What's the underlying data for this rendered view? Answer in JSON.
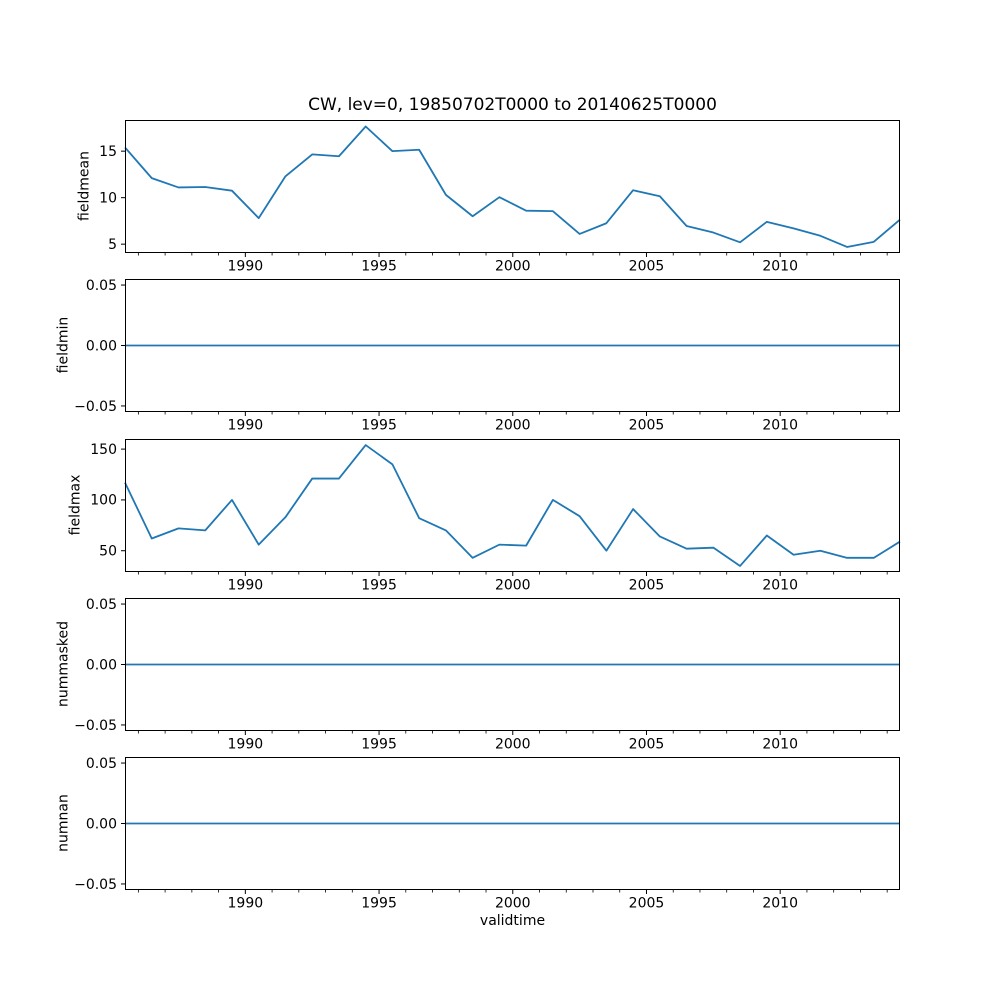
{
  "figure": {
    "background": "#ffffff",
    "frame_color": "#000000",
    "text_color": "#000000"
  },
  "chart_data": {
    "type": "line",
    "title": "CW, lev=0, 19850702T0000 to 20140625T0000",
    "xlabel": "validtime",
    "legend": "none",
    "grid": false,
    "line_color": "#1f77b4",
    "xlim": [
      1985.5,
      2014.48
    ],
    "x_major_ticks": [
      1990,
      1995,
      2000,
      2005,
      2010
    ],
    "x_major_tick_labels": [
      "1990",
      "1995",
      "2000",
      "2005",
      "2010"
    ],
    "x_minor_tick_every_years": 1,
    "x": [
      1985.5,
      1986.5,
      1987.5,
      1988.5,
      1989.5,
      1990.5,
      1991.5,
      1992.5,
      1993.5,
      1994.5,
      1995.5,
      1996.5,
      1997.5,
      1998.5,
      1999.5,
      2000.5,
      2001.5,
      2002.5,
      2003.5,
      2004.5,
      2005.5,
      2006.5,
      2007.5,
      2008.5,
      2009.5,
      2010.5,
      2011.5,
      2012.5,
      2013.5,
      2014.48
    ],
    "plots": [
      {
        "name": "fieldmean",
        "ylabel": "fieldmean",
        "ylim": [
          4.05,
          18.35
        ],
        "yticks": [
          5,
          10,
          15
        ],
        "ytick_labels": [
          "5",
          "10",
          "15"
        ],
        "values": [
          15.4,
          12.1,
          11.1,
          11.15,
          10.75,
          7.8,
          12.3,
          14.65,
          14.45,
          17.65,
          15.0,
          15.15,
          10.3,
          8.0,
          10.05,
          8.6,
          8.55,
          6.1,
          7.25,
          10.8,
          10.15,
          6.95,
          6.25,
          5.2,
          7.4,
          6.7,
          5.9,
          4.7,
          5.25,
          7.65
        ]
      },
      {
        "name": "fieldmin",
        "ylabel": "fieldmin",
        "ylim": [
          -0.055,
          0.055
        ],
        "yticks": [
          -0.05,
          0,
          0.05
        ],
        "ytick_labels": [
          "−0.05",
          "0.00",
          "0.05"
        ],
        "values": [
          0,
          0,
          0,
          0,
          0,
          0,
          0,
          0,
          0,
          0,
          0,
          0,
          0,
          0,
          0,
          0,
          0,
          0,
          0,
          0,
          0,
          0,
          0,
          0,
          0,
          0,
          0,
          0,
          0,
          0
        ]
      },
      {
        "name": "fieldmax",
        "ylabel": "fieldmax",
        "ylim": [
          29.05,
          159.95
        ],
        "yticks": [
          50,
          100,
          150
        ],
        "ytick_labels": [
          "50",
          "100",
          "150"
        ],
        "values": [
          117,
          62,
          72,
          70,
          100,
          56,
          83,
          121,
          121,
          154,
          135,
          82,
          70,
          43,
          56,
          55,
          100,
          84,
          50,
          91,
          64,
          52,
          53,
          35,
          65,
          46,
          50,
          43,
          43,
          59
        ]
      },
      {
        "name": "nummasked",
        "ylabel": "nummasked",
        "ylim": [
          -0.055,
          0.055
        ],
        "yticks": [
          -0.05,
          0,
          0.05
        ],
        "ytick_labels": [
          "−0.05",
          "0.00",
          "0.05"
        ],
        "values": [
          0,
          0,
          0,
          0,
          0,
          0,
          0,
          0,
          0,
          0,
          0,
          0,
          0,
          0,
          0,
          0,
          0,
          0,
          0,
          0,
          0,
          0,
          0,
          0,
          0,
          0,
          0,
          0,
          0,
          0
        ]
      },
      {
        "name": "numnan",
        "ylabel": "numnan",
        "ylim": [
          -0.055,
          0.055
        ],
        "yticks": [
          -0.05,
          0,
          0.05
        ],
        "ytick_labels": [
          "−0.05",
          "0.00",
          "0.05"
        ],
        "values": [
          0,
          0,
          0,
          0,
          0,
          0,
          0,
          0,
          0,
          0,
          0,
          0,
          0,
          0,
          0,
          0,
          0,
          0,
          0,
          0,
          0,
          0,
          0,
          0,
          0,
          0,
          0,
          0,
          0,
          0
        ]
      }
    ]
  }
}
